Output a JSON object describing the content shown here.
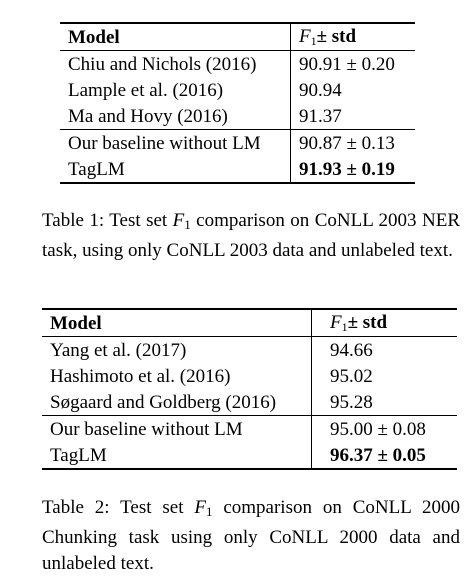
{
  "table1": {
    "headers": {
      "model": "Model",
      "f1_sym": "F",
      "f1_sub": "1",
      "f1_rest": "± std"
    },
    "rows": [
      {
        "model": "Chiu and Nichols (2016)",
        "score": "90.91 ± 0.20"
      },
      {
        "model": "Lample et al. (2016)",
        "score": "90.94"
      },
      {
        "model": "Ma and Hovy (2016)",
        "score": "91.37"
      },
      {
        "model": "Our baseline without LM",
        "score": "90.87 ± 0.13"
      },
      {
        "model": "TagLM",
        "score": "91.93 ± 0.19"
      }
    ],
    "caption": {
      "pre": "Table 1: Test set ",
      "sym": "F",
      "sub": "1",
      "post": " comparison on CoNLL 2003 NER task, using only CoNLL 2003 data and unlabeled text."
    }
  },
  "table2": {
    "headers": {
      "model": "Model",
      "f1_sym": "F",
      "f1_sub": "1",
      "f1_rest": "± std"
    },
    "rows": [
      {
        "model": "Yang et al. (2017)",
        "score": "94.66"
      },
      {
        "model": "Hashimoto et al. (2016)",
        "score": "95.02"
      },
      {
        "model": "Søgaard and Goldberg (2016)",
        "score": "95.28"
      },
      {
        "model": "Our baseline without LM",
        "score": "95.00 ± 0.08"
      },
      {
        "model": "TagLM",
        "score": "96.37 ± 0.05"
      }
    ],
    "caption": {
      "pre": "Table 2: Test set ",
      "sym": "F",
      "sub": "1",
      "post": " comparison on CoNLL 2000 Chunking task using only CoNLL 2000 data and unlabeled text."
    }
  }
}
